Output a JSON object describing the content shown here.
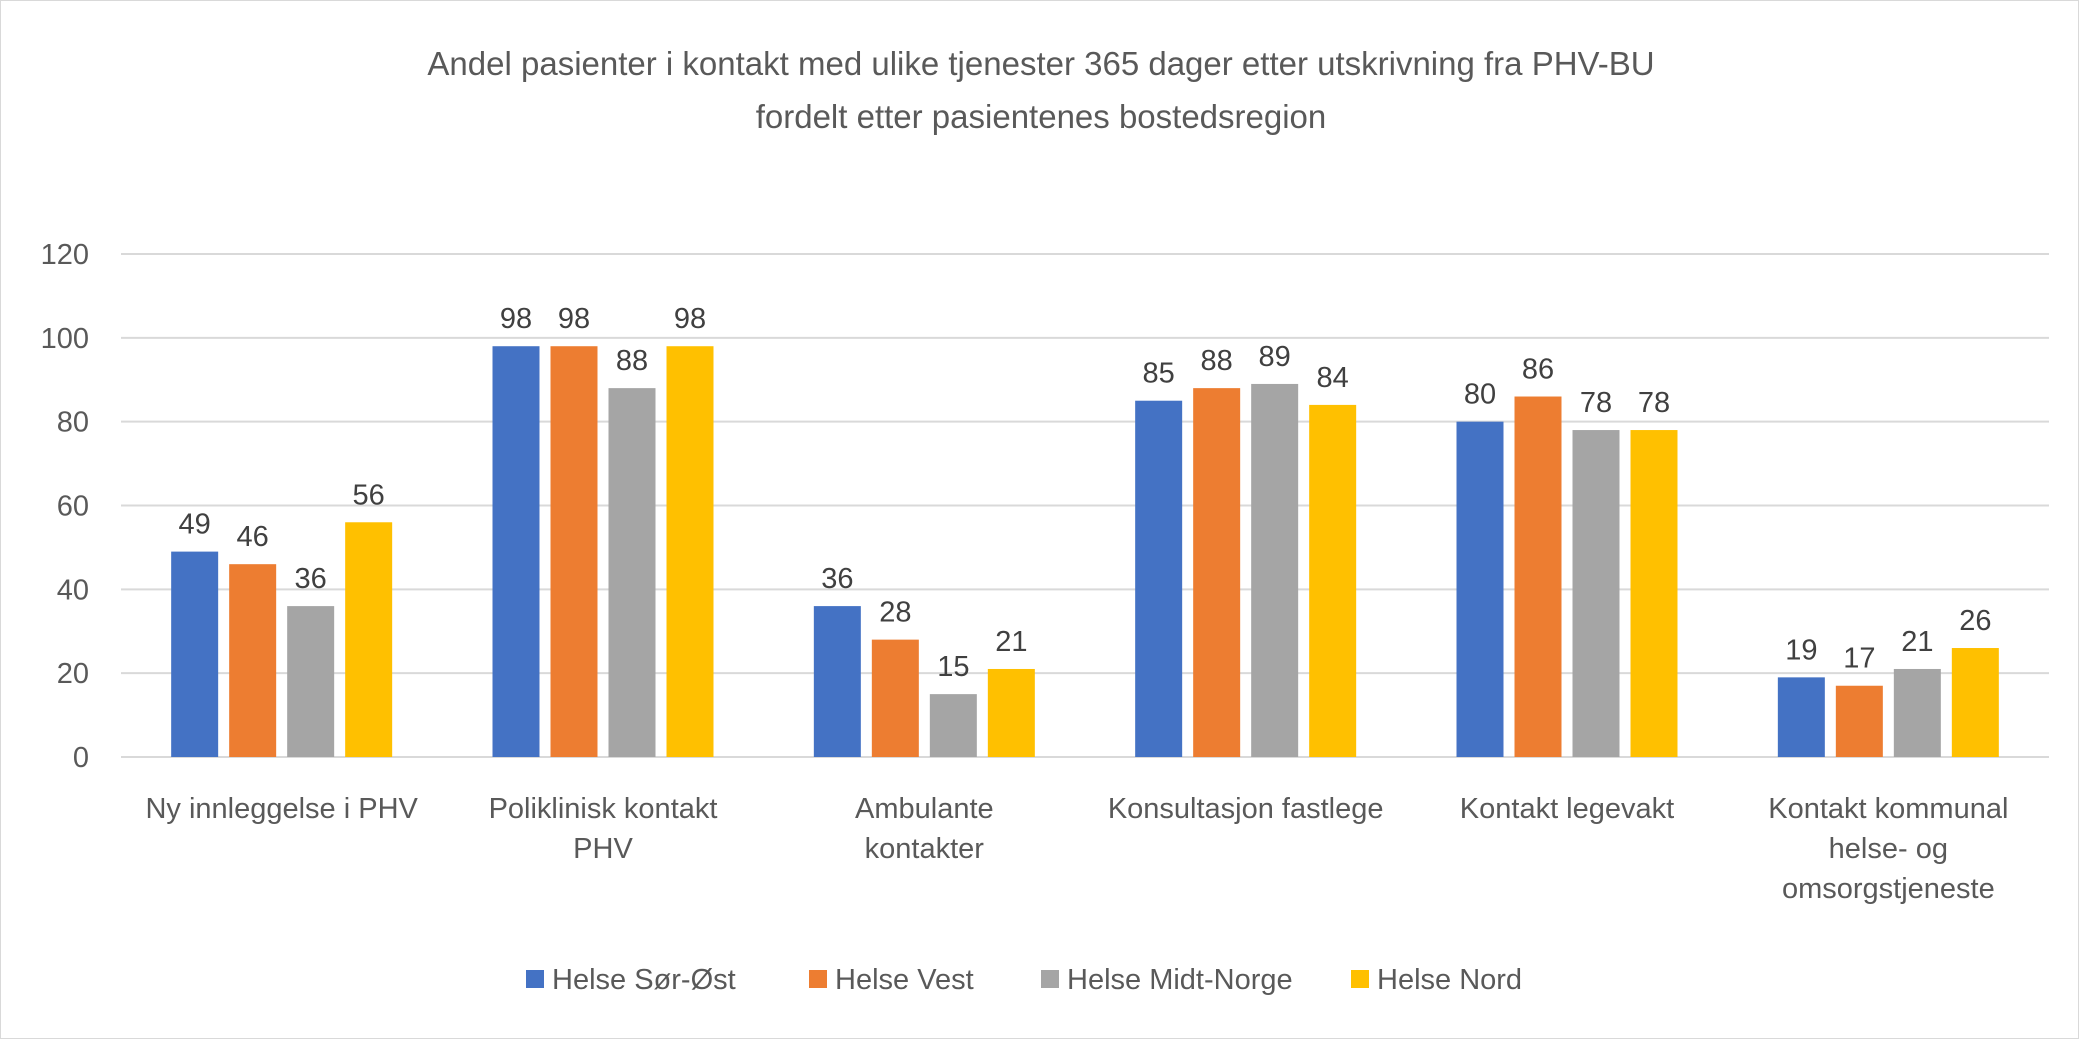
{
  "chart_data": {
    "type": "bar",
    "title": [
      "Andel pasienter i kontakt med ulike tjenester 365 dager etter utskrivning fra PHV-BU",
      "fordelt etter pasientenes bostedsregion"
    ],
    "xlabel": "",
    "ylabel": "",
    "ylim": [
      0,
      120
    ],
    "yticks": [
      0,
      20,
      40,
      60,
      80,
      100,
      120
    ],
    "grid": true,
    "legend_position": "bottom",
    "categories": [
      [
        "Ny innleggelse i PHV"
      ],
      [
        "Poliklinisk kontakt",
        "PHV"
      ],
      [
        "Ambulante",
        "kontakter"
      ],
      [
        "Konsultasjon fastlege"
      ],
      [
        "Kontakt legevakt"
      ],
      [
        "Kontakt kommunal",
        "helse- og",
        "omsorgstjeneste"
      ]
    ],
    "series": [
      {
        "name": "Helse Sør-Øst",
        "color": "#4472C4",
        "values": [
          49,
          98,
          36,
          85,
          80,
          19
        ]
      },
      {
        "name": "Helse Vest",
        "color": "#ED7D31",
        "values": [
          46,
          98,
          28,
          88,
          86,
          17
        ]
      },
      {
        "name": "Helse Midt-Norge",
        "color": "#A5A5A5",
        "values": [
          36,
          88,
          15,
          89,
          78,
          21
        ]
      },
      {
        "name": "Helse Nord",
        "color": "#FFC000",
        "values": [
          56,
          98,
          21,
          84,
          78,
          26
        ]
      }
    ]
  }
}
